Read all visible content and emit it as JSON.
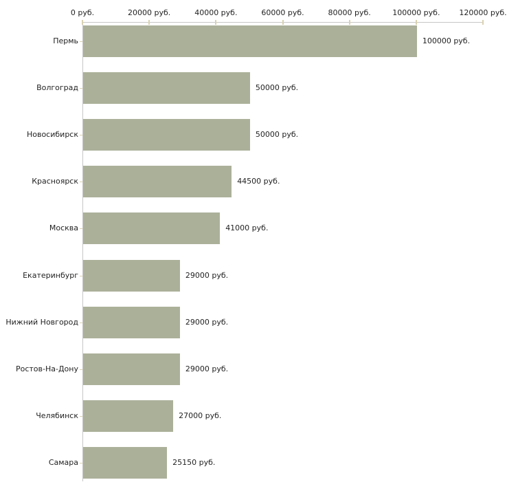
{
  "chart_data": {
    "type": "bar",
    "orientation": "horizontal",
    "title": "",
    "xlabel": "",
    "ylabel": "",
    "categories": [
      "Пермь",
      "Волгоград",
      "Новосибирск",
      "Красноярск",
      "Москва",
      "Екатеринбург",
      "Нижний Новгород",
      "Ростов-На-Дону",
      "Челябинск",
      "Самара"
    ],
    "values": [
      100000,
      50000,
      50000,
      44500,
      41000,
      29000,
      29000,
      29000,
      27000,
      25150
    ],
    "value_labels": [
      "100000 руб.",
      "50000 руб.",
      "50000 руб.",
      "44500 руб.",
      "41000 руб.",
      "29000 руб.",
      "29000 руб.",
      "29000 руб.",
      "27000 руб.",
      "25150 руб."
    ],
    "x_axis": {
      "position": "top",
      "min": 0,
      "max": 120000,
      "ticks": [
        0,
        20000,
        40000,
        60000,
        80000,
        100000,
        120000
      ],
      "tick_labels": [
        "0 руб.",
        "20000 руб.",
        "40000 руб.",
        "60000 руб.",
        "80000 руб.",
        "100000 руб.",
        "120000 руб."
      ],
      "unit": "руб."
    },
    "grid": false,
    "legend": "none",
    "colors": {
      "bar": "#abb199",
      "axis_line": "#c6c6c6",
      "tick_mark": "#d9d2b0",
      "text": "#1f1f1f",
      "background": "#ffffff"
    }
  }
}
